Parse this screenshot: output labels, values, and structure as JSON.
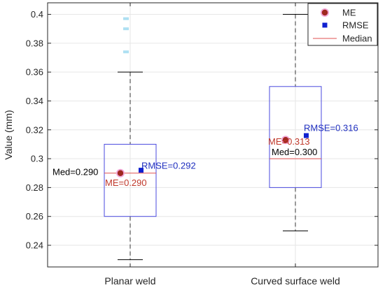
{
  "chart_data": {
    "type": "box",
    "xlabel": "",
    "ylabel": "Value (mm)",
    "ylim": [
      0.225,
      0.408
    ],
    "yticks": [
      0.24,
      0.26,
      0.28,
      0.3,
      0.32,
      0.34,
      0.36,
      0.38,
      0.4
    ],
    "ytick_labels": [
      "0.24",
      "0.26",
      "0.28",
      "0.3",
      "0.32",
      "0.34",
      "0.36",
      "0.38",
      "0.4"
    ],
    "grid": true,
    "legend_position": "top-right",
    "categories": [
      "Planar weld",
      "Curved surface weld"
    ],
    "boxes": [
      {
        "category": "Planar weld",
        "q1": 0.26,
        "median": 0.29,
        "q3": 0.31,
        "whisker_low": 0.23,
        "whisker_high": 0.36,
        "outliers": [
          0.374,
          0.39,
          0.397
        ],
        "me": 0.29,
        "rmse": 0.292
      },
      {
        "category": "Curved surface weld",
        "q1": 0.28,
        "median": 0.3,
        "q3": 0.35,
        "whisker_low": 0.25,
        "whisker_high": 0.4,
        "outliers": [],
        "me": 0.313,
        "rmse": 0.316
      }
    ],
    "series": [
      {
        "name": "ME",
        "values": [
          0.29,
          0.313
        ]
      },
      {
        "name": "RMSE",
        "values": [
          0.292,
          0.316
        ]
      },
      {
        "name": "Median",
        "values": [
          0.29,
          0.3
        ]
      }
    ],
    "annotations": [
      {
        "category": "Planar weld",
        "text": "Med=0.290",
        "color": "#000000"
      },
      {
        "category": "Planar weld",
        "text": "ME=0.290",
        "color": "#c0392b"
      },
      {
        "category": "Planar weld",
        "text": "RMSE=0.292",
        "color": "#1f2fbf"
      },
      {
        "category": "Curved surface weld",
        "text": "Med=0.300",
        "color": "#000000"
      },
      {
        "category": "Curved surface weld",
        "text": "ME=0.313",
        "color": "#c0392b"
      },
      {
        "category": "Curved surface weld",
        "text": "RMSE=0.316",
        "color": "#1f2fbf"
      }
    ],
    "legend": [
      {
        "label": "ME",
        "marker": "circle",
        "color": "#a0281f"
      },
      {
        "label": "RMSE",
        "marker": "square",
        "color": "#1020d0"
      },
      {
        "label": "Median",
        "marker": "line",
        "color": "#e05050"
      }
    ],
    "colors": {
      "box": "#4a4adf",
      "median": "#e05050",
      "whisker": "#333333",
      "me_marker": "#a0281f",
      "me_halo": "#f2a7d8",
      "rmse_marker": "#1020d0",
      "grid": "#e6e6e6",
      "outlier": "#9ad8ef"
    }
  }
}
